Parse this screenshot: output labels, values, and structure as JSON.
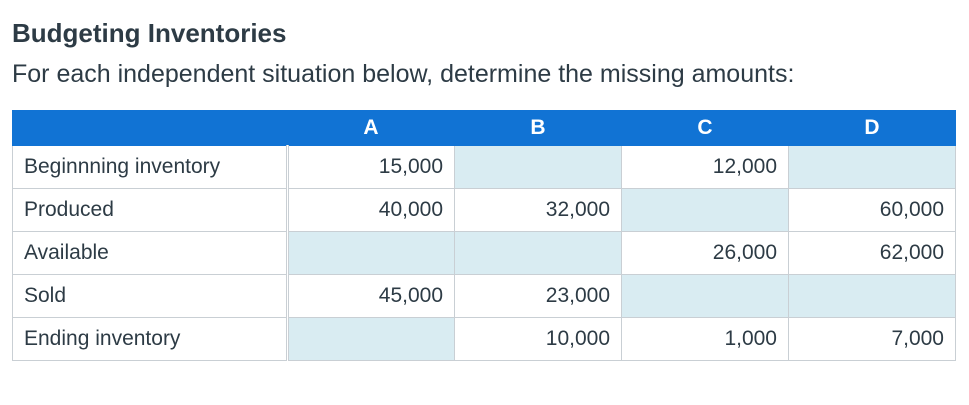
{
  "title": "Budgeting Inventories",
  "subtitle": "For each independent situation below, determine the missing amounts:",
  "colors": {
    "header_bg": "#1173d4",
    "header_text": "#ffffff",
    "missing_cell_bg": "#d9ecf2",
    "border": "#c9cfd4",
    "text": "#2d3b45"
  },
  "table": {
    "columns": [
      "",
      "A",
      "B",
      "C",
      "D"
    ],
    "rows": [
      {
        "label": "Beginnning inventory",
        "values": [
          "15,000",
          "",
          "12,000",
          ""
        ]
      },
      {
        "label": "Produced",
        "values": [
          "40,000",
          "32,000",
          "",
          "60,000"
        ]
      },
      {
        "label": "Available",
        "values": [
          "",
          "",
          "26,000",
          "62,000"
        ]
      },
      {
        "label": "Sold",
        "values": [
          "45,000",
          "23,000",
          "",
          ""
        ]
      },
      {
        "label": "Ending inventory",
        "values": [
          "",
          "10,000",
          "1,000",
          "7,000"
        ]
      }
    ]
  }
}
